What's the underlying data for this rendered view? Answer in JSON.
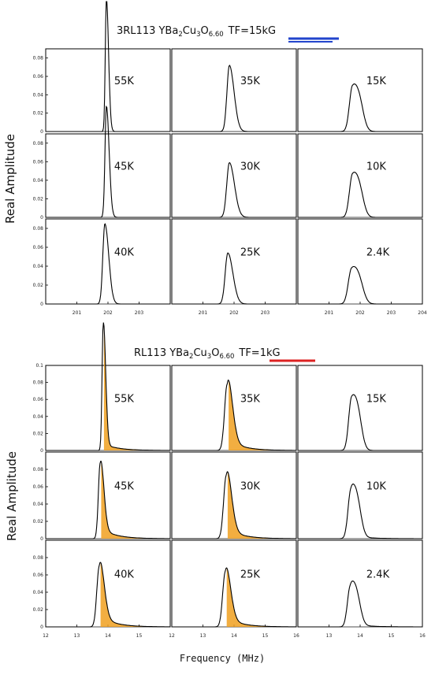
{
  "top_title": {
    "pre": "3RL113  YBa",
    "s1": "2",
    "mid1": "Cu",
    "s2": "3",
    "mid2": "O",
    "s3": "6.60",
    "tf": "TF=15kG",
    "underline_color": "#2244cc"
  },
  "bottom_title": {
    "pre": "RL113  YBa",
    "s1": "2",
    "mid1": "Cu",
    "s2": "3",
    "mid2": "O",
    "s3": "6.60",
    "tf": "TF=1kG",
    "underline_color": "#dd2222"
  },
  "top_ylabel": "Real Amplitude",
  "bottom_ylabel": "Real Amplitude",
  "xlabel": "Frequency (MHz)",
  "colors": {
    "line": "#000000",
    "shade": "#f0a020",
    "frame": "#000000"
  },
  "chart_data": [
    {
      "type": "line",
      "title": "3RL113 YBa2Cu3O6.60 TF=15kG",
      "ylabel": "Real Amplitude",
      "xlabel": "",
      "ylim": [
        0,
        0.09
      ],
      "yticks": [
        "0",
        "0.02",
        "0.04",
        "0.06",
        "0.08"
      ],
      "xticks": [
        {
          "xlim": [
            200,
            204
          ],
          "labels": [
            "201",
            "202",
            "203"
          ]
        },
        {
          "xlim": [
            200,
            204
          ],
          "labels": [
            "201",
            "202",
            "203"
          ]
        },
        {
          "xlim": [
            200,
            204
          ],
          "labels": [
            "201",
            "202",
            "203",
            "204"
          ]
        }
      ],
      "panels": [
        {
          "temp": "55K",
          "col": 0,
          "row": 0,
          "center": 201.95,
          "width": 0.055,
          "peak": 0.145,
          "shoulder": 0,
          "tail": 0
        },
        {
          "temp": "35K",
          "col": 1,
          "row": 0,
          "center": 201.85,
          "width": 0.12,
          "peak": 0.072,
          "shoulder": 0,
          "tail": 0
        },
        {
          "temp": "15K",
          "col": 2,
          "row": 0,
          "center": 201.75,
          "width": 0.15,
          "peak": 0.05,
          "shoulder": 0.42,
          "tail": 0
        },
        {
          "temp": "45K",
          "col": 0,
          "row": 1,
          "center": 201.95,
          "width": 0.07,
          "peak": 0.12,
          "shoulder": 0,
          "tail": 0
        },
        {
          "temp": "30K",
          "col": 1,
          "row": 1,
          "center": 201.85,
          "width": 0.13,
          "peak": 0.059,
          "shoulder": 0,
          "tail": 0
        },
        {
          "temp": "10K",
          "col": 2,
          "row": 1,
          "center": 201.75,
          "width": 0.15,
          "peak": 0.047,
          "shoulder": 0.42,
          "tail": 0
        },
        {
          "temp": "40K",
          "col": 0,
          "row": 2,
          "center": 201.9,
          "width": 0.1,
          "peak": 0.085,
          "shoulder": 0,
          "tail": 0
        },
        {
          "temp": "25K",
          "col": 1,
          "row": 2,
          "center": 201.8,
          "width": 0.13,
          "peak": 0.054,
          "shoulder": 0,
          "tail": 0
        },
        {
          "temp": "2.4K",
          "col": 2,
          "row": 2,
          "center": 201.72,
          "width": 0.16,
          "peak": 0.038,
          "shoulder": 0.45,
          "tail": 0
        }
      ]
    },
    {
      "type": "line",
      "title": "RL113 YBa2Cu3O6.60 TF=1kG",
      "ylabel": "Real Amplitude",
      "xlabel": "Frequency (MHz)",
      "ylim": [
        0,
        0.1
      ],
      "yticks_row0": [
        "0",
        "0.02",
        "0.04",
        "0.06",
        "0.08",
        "0.1"
      ],
      "yticks": [
        "0",
        "0.02",
        "0.04",
        "0.06",
        "0.08"
      ],
      "xticks": [
        {
          "xlim": [
            12,
            16
          ],
          "labels": [
            "12",
            "13",
            "14",
            "15"
          ]
        },
        {
          "xlim": [
            12,
            16
          ],
          "labels": [
            "12",
            "13",
            "14",
            "15",
            "16"
          ]
        },
        {
          "xlim": [
            12,
            16
          ],
          "labels": [
            "13",
            "14",
            "15",
            "16"
          ]
        }
      ],
      "panels": [
        {
          "temp": "55K",
          "col": 0,
          "row": 0,
          "center": 13.85,
          "width": 0.06,
          "peak": 0.15,
          "shoulder": 0,
          "tail": 0.008,
          "shade": true
        },
        {
          "temp": "35K",
          "col": 1,
          "row": 0,
          "center": 13.78,
          "width": 0.13,
          "peak": 0.078,
          "shoulder": 0,
          "tail": 0.014,
          "shade": true
        },
        {
          "temp": "15K",
          "col": 2,
          "row": 0,
          "center": 13.72,
          "width": 0.14,
          "peak": 0.063,
          "shoulder": 0.45,
          "tail": 0
        },
        {
          "temp": "45K",
          "col": 0,
          "row": 1,
          "center": 13.75,
          "width": 0.09,
          "peak": 0.087,
          "shoulder": 0,
          "tail": 0.013,
          "shade": true
        },
        {
          "temp": "30K",
          "col": 1,
          "row": 1,
          "center": 13.75,
          "width": 0.13,
          "peak": 0.073,
          "shoulder": 0,
          "tail": 0.013,
          "shade": true
        },
        {
          "temp": "10K",
          "col": 2,
          "row": 1,
          "center": 13.7,
          "width": 0.14,
          "peak": 0.058,
          "shoulder": 0.45,
          "tail": 0.004
        },
        {
          "temp": "40K",
          "col": 0,
          "row": 2,
          "center": 13.72,
          "width": 0.12,
          "peak": 0.07,
          "shoulder": 0,
          "tail": 0.014,
          "shade": true
        },
        {
          "temp": "25K",
          "col": 1,
          "row": 2,
          "center": 13.72,
          "width": 0.13,
          "peak": 0.064,
          "shoulder": 0,
          "tail": 0.012,
          "shade": true
        },
        {
          "temp": "2.4K",
          "col": 2,
          "row": 2,
          "center": 13.68,
          "width": 0.14,
          "peak": 0.048,
          "shoulder": 0.47,
          "tail": 0.004
        }
      ]
    }
  ]
}
